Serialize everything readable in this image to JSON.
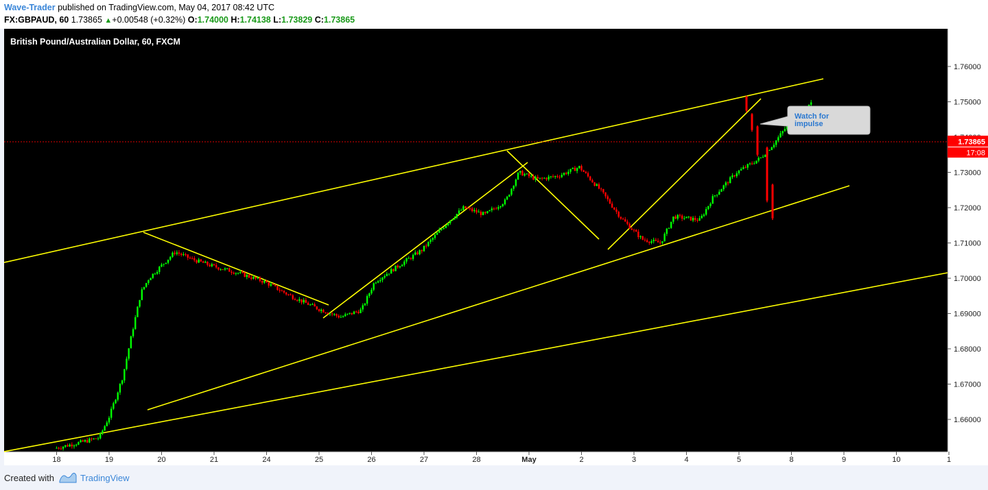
{
  "header": {
    "author": "Wave-Trader",
    "published_text": "published on TradingView.com, May 04, 2017 08:42 UTC",
    "symbol": "FX:GBPAUD, 60",
    "last": "1.73865",
    "change": "+0.00548 (+0.32%)",
    "open_label": "O:",
    "open": "1.74000",
    "high_label": "H:",
    "high": "1.74138",
    "low_label": "L:",
    "low": "1.73829",
    "close_label": "C:",
    "close": "1.73865"
  },
  "chart_data": {
    "type": "candlestick",
    "title": "British Pound/Australian Dollar, 60, FXCM",
    "xlabel": "",
    "ylabel": "",
    "ylim": [
      1.6514,
      1.77
    ],
    "y_ticks": [
      "1.76000",
      "1.75000",
      "1.74000",
      "1.73000",
      "1.72000",
      "1.71000",
      "1.70000",
      "1.69000",
      "1.68000",
      "1.67000",
      "1.66000"
    ],
    "x_ticks": [
      "18",
      "19",
      "20",
      "21",
      "24",
      "25",
      "26",
      "27",
      "28",
      "May",
      "2",
      "3",
      "4",
      "5",
      "8",
      "9",
      "10",
      "1"
    ],
    "grid": false,
    "background": "#000000",
    "up_color": "#00ff00",
    "down_color": "#ff0000",
    "trendline_color": "#ffff00",
    "price_line": {
      "value": 1.73865,
      "label": "1.73865",
      "countdown": "17:08",
      "color": "#ff0000"
    },
    "anchors": [
      {
        "t": 0.0,
        "p": 1.6518
      },
      {
        "t": 0.5,
        "p": 1.6535
      },
      {
        "t": 0.85,
        "p": 1.6548
      },
      {
        "t": 1.05,
        "p": 1.661
      },
      {
        "t": 1.3,
        "p": 1.672
      },
      {
        "t": 1.5,
        "p": 1.686
      },
      {
        "t": 1.65,
        "p": 1.696
      },
      {
        "t": 1.8,
        "p": 1.7
      },
      {
        "t": 2.0,
        "p": 1.703
      },
      {
        "t": 2.3,
        "p": 1.7075
      },
      {
        "t": 2.6,
        "p": 1.7055
      },
      {
        "t": 3.0,
        "p": 1.7035
      },
      {
        "t": 3.5,
        "p": 1.7015
      },
      {
        "t": 4.0,
        "p": 1.699
      },
      {
        "t": 4.5,
        "p": 1.695
      },
      {
        "t": 5.0,
        "p": 1.6915
      },
      {
        "t": 5.45,
        "p": 1.689
      },
      {
        "t": 5.85,
        "p": 1.691
      },
      {
        "t": 6.1,
        "p": 1.699
      },
      {
        "t": 6.5,
        "p": 1.703
      },
      {
        "t": 7.0,
        "p": 1.708
      },
      {
        "t": 7.5,
        "p": 1.716
      },
      {
        "t": 7.8,
        "p": 1.72
      },
      {
        "t": 8.2,
        "p": 1.718
      },
      {
        "t": 8.6,
        "p": 1.722
      },
      {
        "t": 8.85,
        "p": 1.73
      },
      {
        "t": 9.2,
        "p": 1.728
      },
      {
        "t": 9.6,
        "p": 1.729
      },
      {
        "t": 10.0,
        "p": 1.7315
      },
      {
        "t": 10.4,
        "p": 1.725
      },
      {
        "t": 10.8,
        "p": 1.717
      },
      {
        "t": 11.2,
        "p": 1.711
      },
      {
        "t": 11.55,
        "p": 1.71
      },
      {
        "t": 11.8,
        "p": 1.7175
      },
      {
        "t": 12.3,
        "p": 1.7165
      },
      {
        "t": 12.55,
        "p": 1.723
      },
      {
        "t": 13.0,
        "p": 1.73
      },
      {
        "t": 13.45,
        "p": 1.734
      },
      {
        "t": 13.7,
        "p": 1.738
      },
      {
        "t": 14.0,
        "p": 1.744
      },
      {
        "t": 14.2,
        "p": 1.747
      },
      {
        "t": 14.4,
        "p": 1.7495
      }
    ],
    "projection_candles": [
      {
        "open": 1.7515,
        "close": 1.7475,
        "high": 1.7517,
        "low": 1.747
      },
      {
        "open": 1.7465,
        "close": 1.742,
        "high": 1.7468,
        "low": 1.7415
      },
      {
        "open": 1.743,
        "close": 1.735,
        "high": 1.7433,
        "low": 1.7345
      },
      {
        "open": 1.737,
        "close": 1.722,
        "high": 1.7373,
        "low": 1.7215
      },
      {
        "open": 1.7265,
        "close": 1.717,
        "high": 1.7268,
        "low": 1.7165
      }
    ],
    "annotations": [
      {
        "text": "Watch for\nimpulse"
      }
    ]
  },
  "footer": {
    "created_with": "Created with",
    "brand": "TradingView"
  }
}
